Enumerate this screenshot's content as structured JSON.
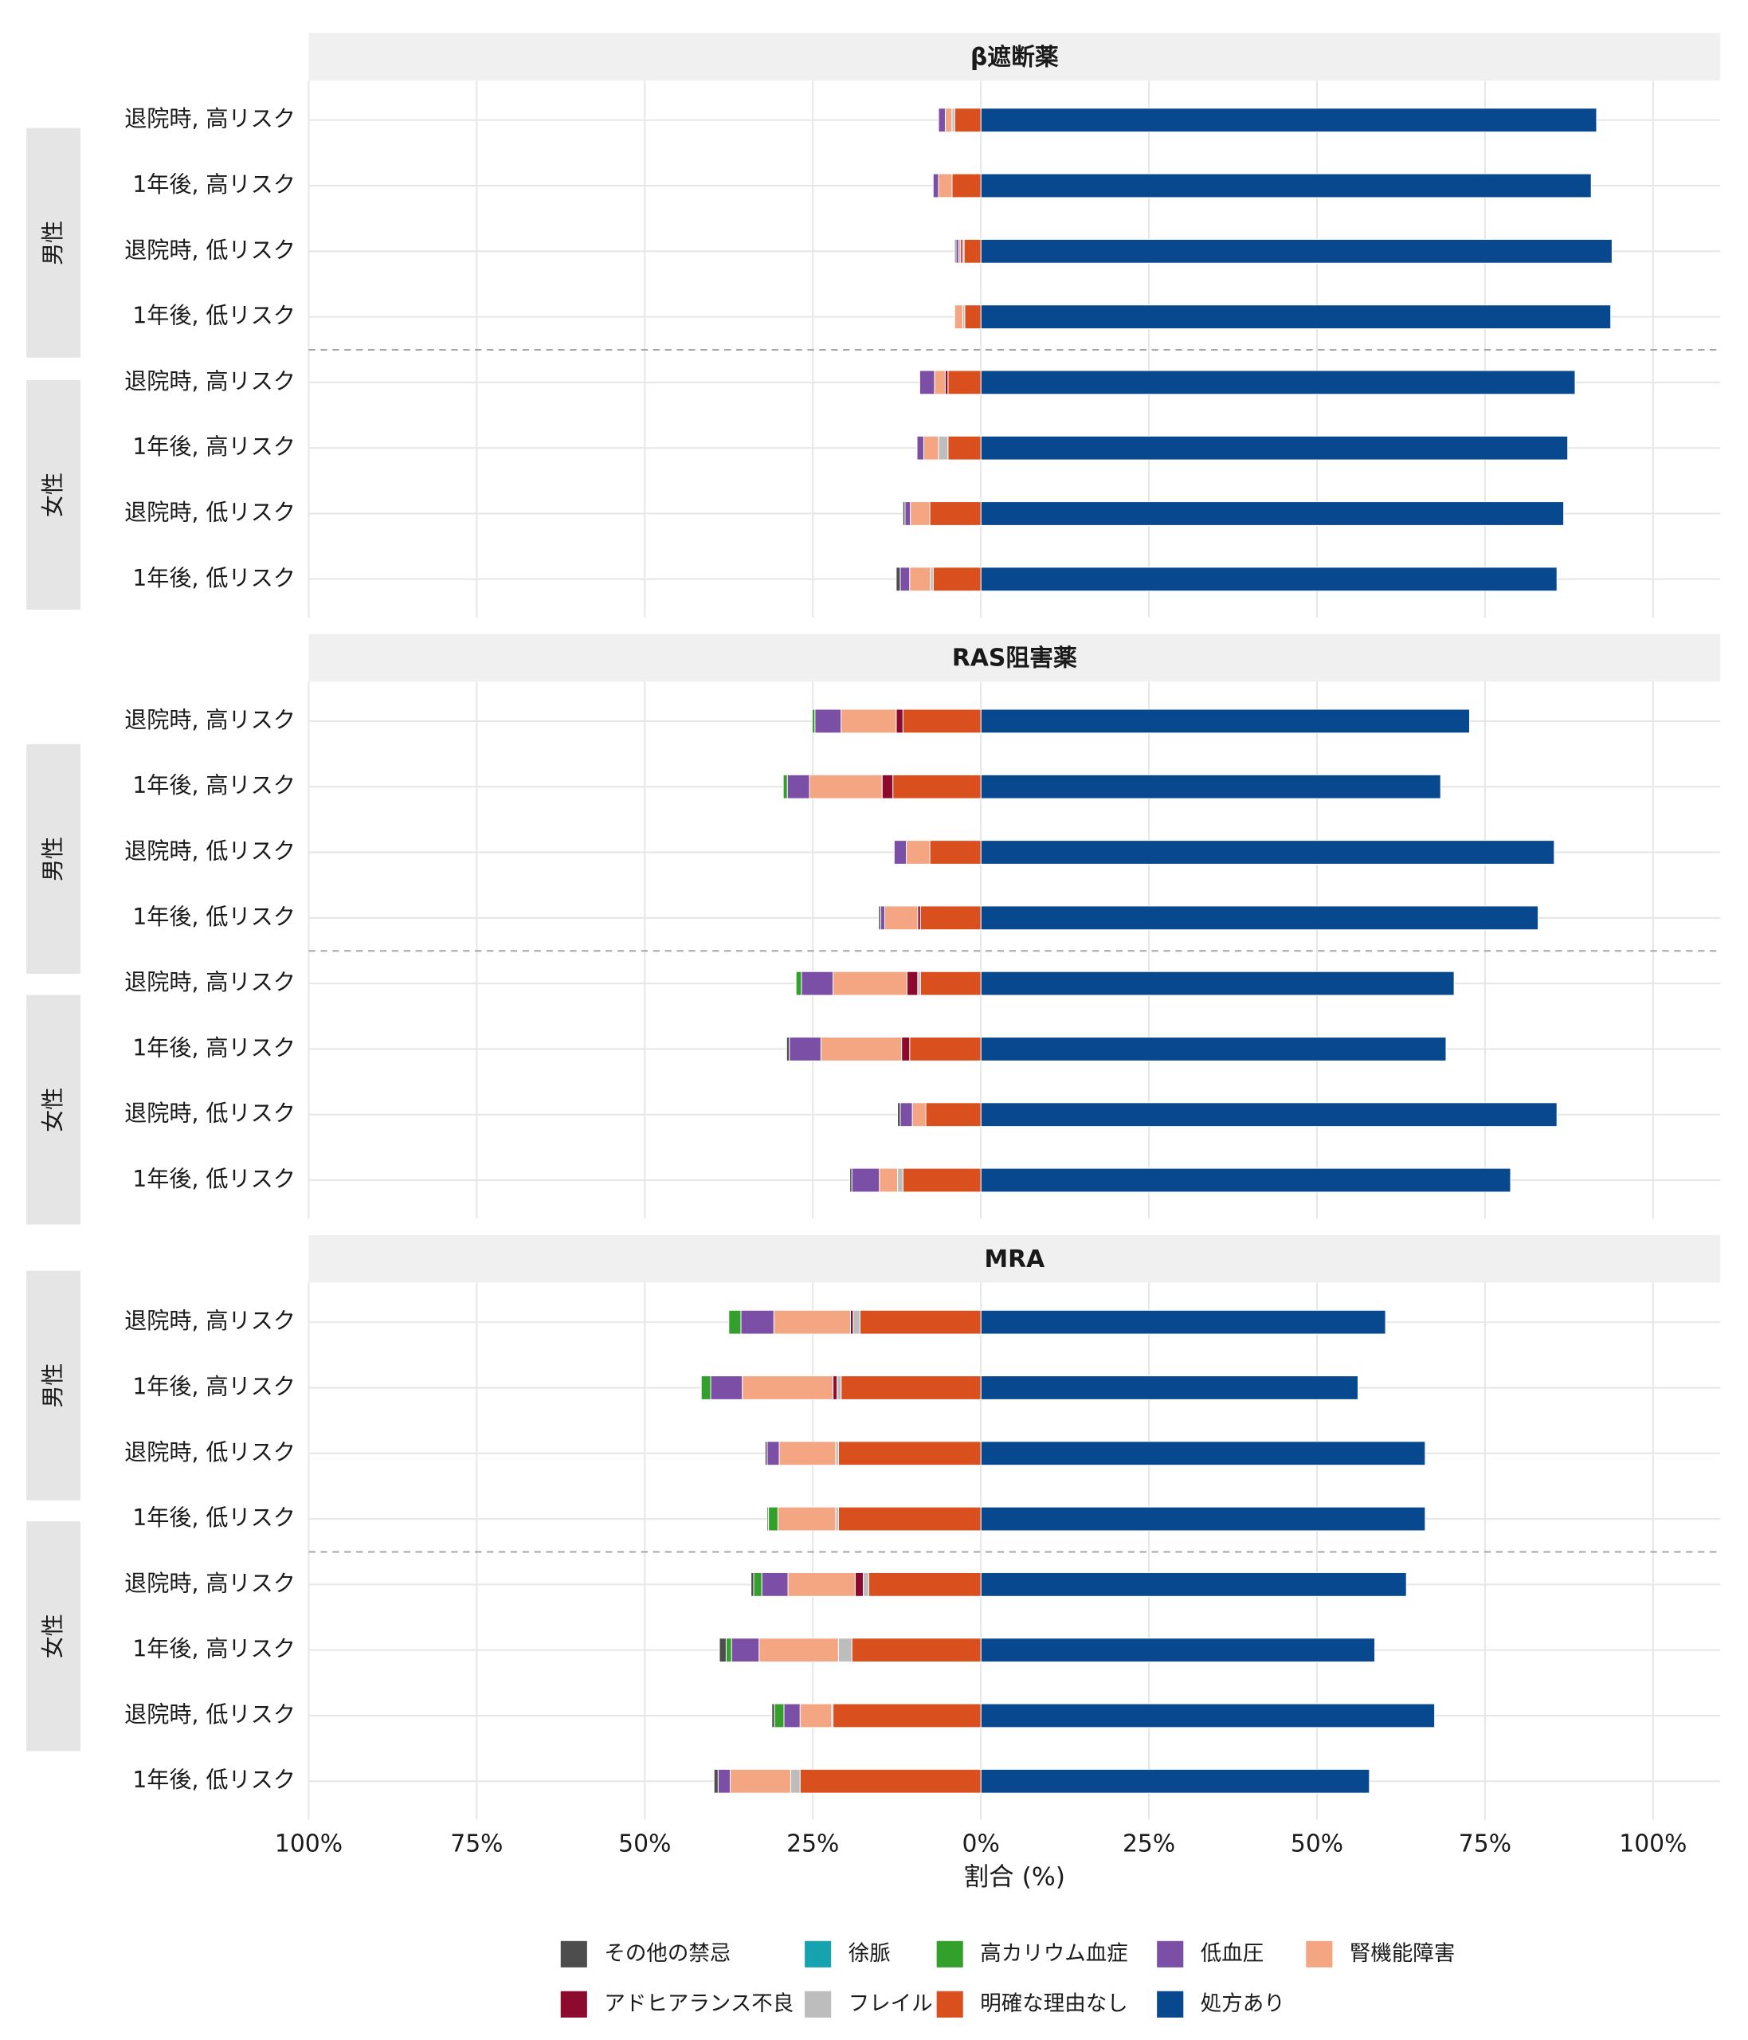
{
  "chart_data": {
    "type": "diverging-stacked-bar",
    "panels": [
      "β遮断薬",
      "RAS阻害薬",
      "MRA"
    ],
    "facets": [
      "男性",
      "女性",
      "男性",
      "女性",
      "男性",
      "女性"
    ],
    "categories": [
      "退院時, 高リスク",
      "1年後, 高リスク",
      "退院時, 低リスク",
      "1年後, 低リスク",
      "退院時, 高リスク",
      "1年後, 高リスク",
      "退院時, 低リスク",
      "1年後, 低リスク",
      "退院時, 高リスク",
      "1年後, 高リスク",
      "退院時, 低リスク",
      "1年後, 低リスク",
      "退院時, 高リスク",
      "1年後, 高リスク",
      "退院時, 低リスク",
      "1年後, 低リスク",
      "退院時, 高リスク",
      "1年後, 高リスク",
      "退院時, 低リスク",
      "1年後, 低リスク",
      "退院時, 高リスク",
      "1年後, 高リスク",
      "退院時, 低リスク",
      "1年後, 低リスク"
    ],
    "series": [
      {
        "name": "その他の禁忌",
        "color": "#4d4d4d",
        "values": [
          0,
          0,
          -0.2,
          0,
          0,
          0,
          -0.3,
          -0.6,
          0,
          0,
          0,
          -0.3,
          0,
          -0.4,
          -0.4,
          -0.3,
          0,
          0,
          -0.3,
          -0.2,
          -0.4,
          -1.0,
          -0.4,
          -0.6
        ]
      },
      {
        "name": "徐脈",
        "color": "#17a2b0",
        "values": [
          0,
          0,
          0,
          0,
          0,
          0,
          0,
          0,
          0,
          0,
          0,
          0,
          0,
          0,
          0,
          0,
          0,
          0,
          0,
          0,
          0,
          0,
          0,
          0
        ]
      },
      {
        "name": "高カリウム血症",
        "color": "#33a02c",
        "values": [
          0,
          0,
          0,
          0,
          0,
          0,
          0,
          0,
          -0.4,
          -0.6,
          0,
          0,
          -0.8,
          0,
          0,
          0,
          -1.8,
          -1.4,
          0,
          -1.4,
          -1.2,
          -0.8,
          -1.4,
          0
        ]
      },
      {
        "name": "低血圧",
        "color": "#7b4fa6",
        "values": [
          -1.0,
          -0.8,
          -0.4,
          0,
          -2.2,
          -1.0,
          -0.8,
          -1.4,
          -3.9,
          -3.3,
          -1.8,
          -0.6,
          -4.7,
          -4.7,
          -1.8,
          -4.1,
          -4.9,
          -4.7,
          -1.8,
          0,
          -3.9,
          -4.1,
          -2.4,
          -1.8
        ]
      },
      {
        "name": "腎機能障害",
        "color": "#f4a582",
        "values": [
          -1.0,
          -2.0,
          -0.3,
          -1.2,
          -1.6,
          -2.2,
          -2.9,
          -3.1,
          -8.2,
          -10.8,
          -3.5,
          -4.9,
          -11.0,
          -12.0,
          -2.0,
          -2.7,
          -11.4,
          -13.5,
          -8.4,
          -8.6,
          -10.0,
          -11.8,
          -4.7,
          -9.0
        ]
      },
      {
        "name": "アドヒアランス不良",
        "color": "#8b0a2e",
        "values": [
          0,
          0,
          -0.3,
          0,
          -0.4,
          0,
          0,
          0,
          -1.0,
          -1.6,
          0,
          -0.4,
          -1.6,
          -1.2,
          0,
          0,
          -0.4,
          -0.6,
          0,
          0,
          -1.2,
          0,
          0,
          0
        ]
      },
      {
        "name": "フレイル",
        "color": "#bdbdbd",
        "values": [
          -0.4,
          0,
          -0.2,
          -0.3,
          0,
          -1.4,
          0,
          -0.4,
          0,
          0,
          0,
          0,
          -0.4,
          0,
          0,
          -0.8,
          -1.0,
          -0.6,
          -0.4,
          -0.4,
          -0.8,
          -2.0,
          -0.2,
          -1.4
        ]
      },
      {
        "name": "明確な理由なし",
        "color": "#d94f1e",
        "values": [
          -3.9,
          -4.3,
          -2.5,
          -2.4,
          -4.9,
          -4.9,
          -7.6,
          -7.1,
          -11.6,
          -13.1,
          -7.6,
          -9.0,
          -9.0,
          -10.6,
          -8.2,
          -11.6,
          -18.0,
          -20.8,
          -21.2,
          -21.2,
          -16.7,
          -19.2,
          -22.0,
          -26.9
        ]
      },
      {
        "name": "処方あり",
        "color": "#08488f",
        "values": [
          91.6,
          90.8,
          93.9,
          93.7,
          88.4,
          87.3,
          86.7,
          85.7,
          72.7,
          68.4,
          85.3,
          82.9,
          70.4,
          69.2,
          85.7,
          78.8,
          60.2,
          56.1,
          66.1,
          66.1,
          63.3,
          58.6,
          67.5,
          57.8
        ]
      }
    ],
    "x_label": "割合 (%)",
    "xlim": [
      -100,
      110
    ],
    "xticks": [
      {
        "value": -100,
        "label": "100%"
      },
      {
        "value": -75,
        "label": "75%"
      },
      {
        "value": -50,
        "label": "50%"
      },
      {
        "value": -25,
        "label": "25%"
      },
      {
        "value": 0,
        "label": "0%"
      },
      {
        "value": 25,
        "label": "25%"
      },
      {
        "value": 50,
        "label": "50%"
      },
      {
        "value": 75,
        "label": "75%"
      },
      {
        "value": 100,
        "label": "100%"
      }
    ],
    "grid": true
  }
}
